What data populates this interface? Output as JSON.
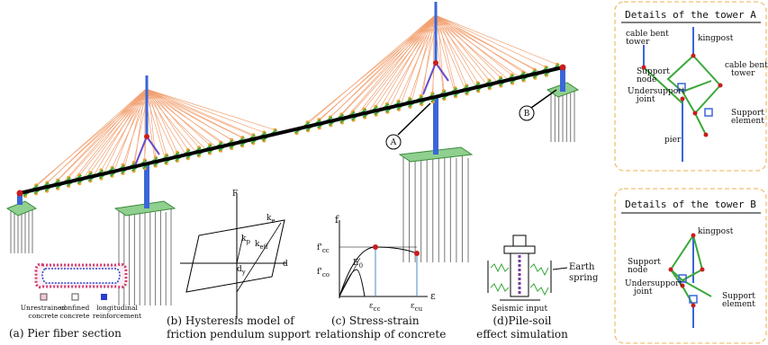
{
  "marker_a": "A",
  "marker_b": "B",
  "tower_a": {
    "title": "Details of the tower A",
    "cable_bent_tower_left": [
      "cable bent",
      "tower"
    ],
    "kingpost": "kingpost",
    "cable_bent_tower_right": [
      "cable bent",
      "tower"
    ],
    "support_node": [
      "Support",
      "node"
    ],
    "undersupport_joint": [
      "Undersupport",
      "joint"
    ],
    "support_element": [
      "Support",
      "element"
    ],
    "pier": "pier"
  },
  "tower_b": {
    "title": "Details of the tower B",
    "kingpost": "kingpost",
    "support_node": [
      "Support",
      "node"
    ],
    "undersupport_joint": [
      "Undersupport",
      "joint"
    ],
    "support_element": [
      "Support",
      "element"
    ]
  },
  "panel_a": {
    "legend": [
      [
        "Unrestrained",
        "concrete"
      ],
      [
        "confined",
        "concrete"
      ],
      [
        "longitudinal",
        "reinforcement"
      ]
    ],
    "caption": "(a) Pier fiber section"
  },
  "panel_b": {
    "f_axis": "F",
    "d_axis": "d",
    "ke": {
      "base": "k",
      "sub": "e"
    },
    "kp": {
      "base": "k",
      "sub": "p"
    },
    "keff": {
      "base": "k",
      "sub": "eff"
    },
    "dy": {
      "base": "d",
      "sub": "y"
    },
    "caption": [
      "(b) Hysteresis model of",
      "friction pendulum support"
    ]
  },
  "panel_c": {
    "f_axis": "f",
    "eps_axis": "ε",
    "fcc": {
      "base": "f'",
      "sub": "cc"
    },
    "fco": {
      "base": "f'",
      "sub": "co"
    },
    "e0": {
      "base": "E",
      "sub": "0"
    },
    "ecc": {
      "base": "ε",
      "sub": "cc"
    },
    "ecu": {
      "base": "ε",
      "sub": "cu"
    },
    "caption": [
      "(c) Stress-strain",
      "relationship of concrete"
    ]
  },
  "panel_d": {
    "earth_spring": [
      "Earth",
      "spring"
    ],
    "seismic_input": "Seismic input",
    "caption": [
      "(d)Pile-soil",
      "effect simulation"
    ]
  }
}
